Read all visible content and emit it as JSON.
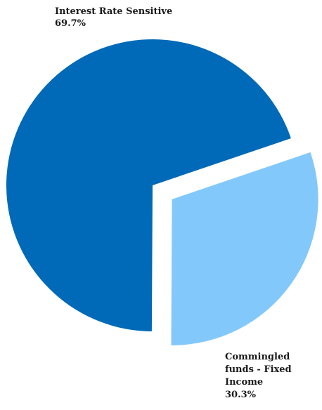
{
  "chart_data": {
    "type": "pie",
    "title": "",
    "slices": [
      {
        "name": "Interest Rate Sensitive",
        "label_lines": [
          "Interest Rate Sensitive"
        ],
        "percent_label": "69.7%",
        "value": 69.7,
        "color": "#006ab8",
        "exploded": false
      },
      {
        "name": "Commingled funds - Fixed Income",
        "label_lines": [
          "Commingled",
          "funds - Fixed",
          "Income"
        ],
        "percent_label": "30.3%",
        "value": 30.3,
        "color": "#83c8fb",
        "exploded": true
      }
    ]
  }
}
